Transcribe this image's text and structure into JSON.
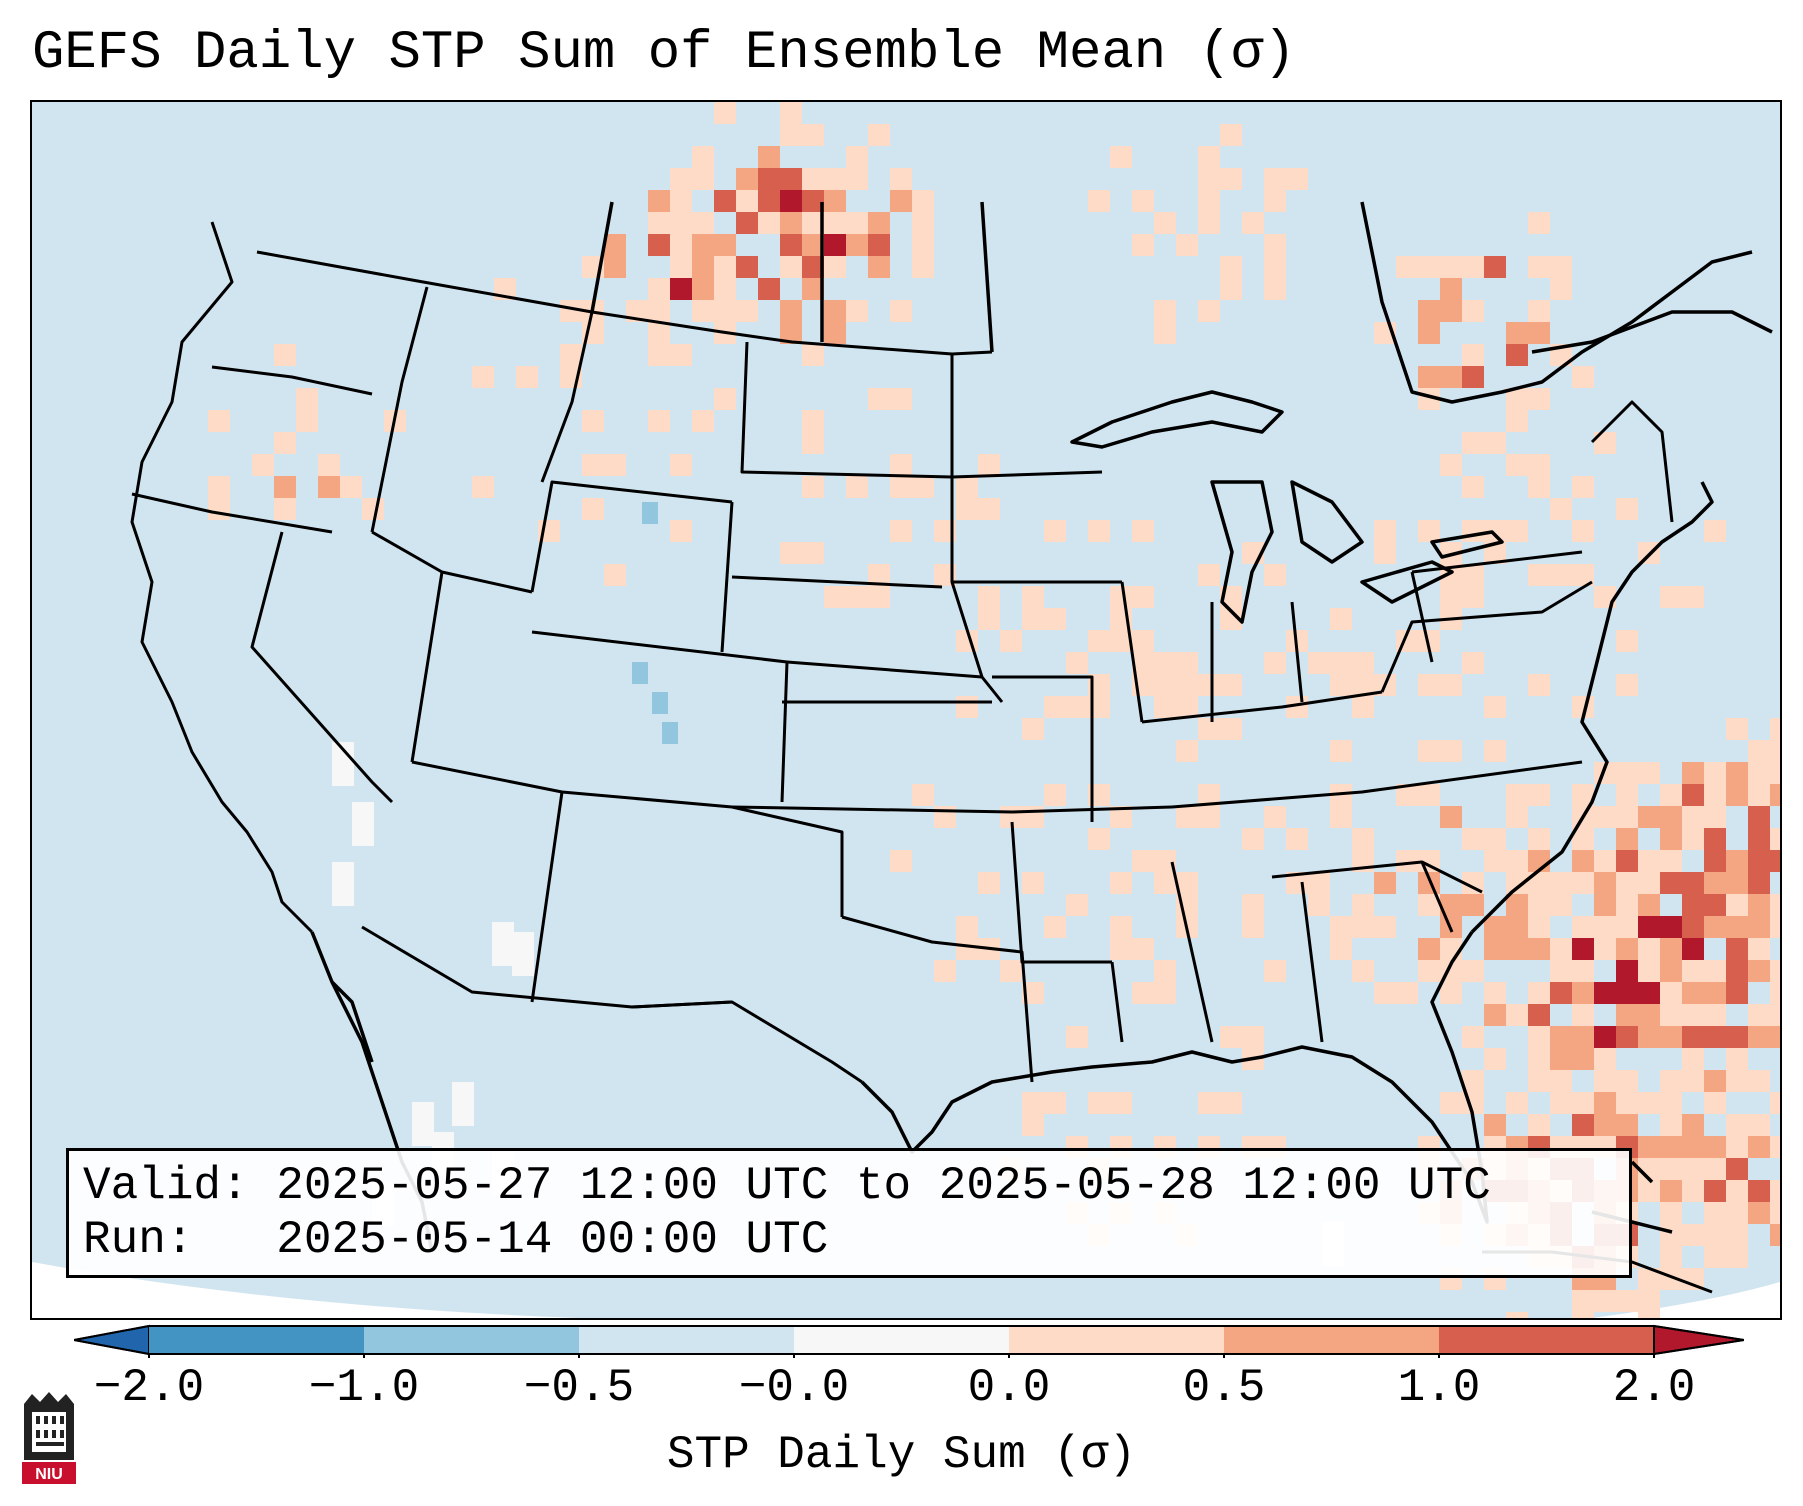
{
  "title": "GEFS Daily STP Sum of Ensemble Mean (σ)",
  "map": {
    "projection": "Lambert Conformal",
    "region": "CONUS",
    "ocean_color": "#d1e5f0"
  },
  "valid_box": {
    "valid_label": "Valid:",
    "valid_value": "2025-05-27 12:00 UTC to 2025-05-28 12:00 UTC",
    "run_label": "Run:",
    "run_value": "2025-05-14 00:00 UTC"
  },
  "colorbar": {
    "label": "STP Daily Sum (σ)",
    "ticks": [
      "−2.0",
      "−1.0",
      "−0.5",
      "−0.0",
      "0.0",
      "0.5",
      "1.0",
      "2.0"
    ],
    "colors": [
      "#2166ac",
      "#4393c3",
      "#92c5de",
      "#d1e5f0",
      "#f7f7f7",
      "#fddbc7",
      "#f4a582",
      "#d6604d",
      "#b2182b"
    ]
  },
  "logo": {
    "text": "NIU",
    "name": "Northern Illinois University"
  }
}
